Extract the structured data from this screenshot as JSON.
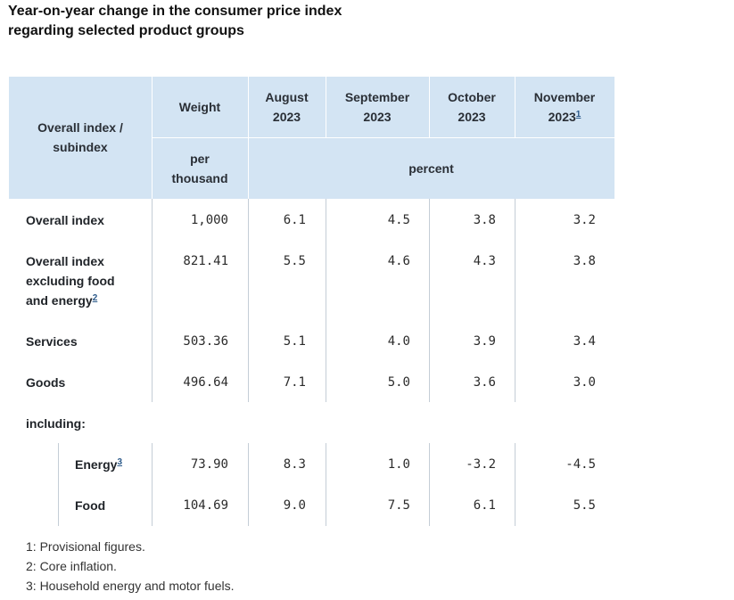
{
  "title": {
    "line1": "Year-on-year change in the consumer price index",
    "line2": "regarding selected product groups"
  },
  "header": {
    "subindex_label_1": "Overall index /",
    "subindex_label_2": "subindex",
    "weight_label": "Weight",
    "weight_unit_1": "per",
    "weight_unit_2": "thousand",
    "percent_label": "percent",
    "months": [
      {
        "month": "August",
        "year": "2023",
        "footnote": ""
      },
      {
        "month": "September",
        "year": "2023",
        "footnote": ""
      },
      {
        "month": "October",
        "year": "2023",
        "footnote": ""
      },
      {
        "month": "November",
        "year": "2023",
        "footnote": "1"
      }
    ]
  },
  "rows": [
    {
      "label_lines": [
        "Overall index"
      ],
      "weight": "1,000",
      "values": [
        "6.1",
        "4.5",
        "3.8",
        "3.2"
      ]
    },
    {
      "label_lines": [
        "Overall index",
        "excluding food",
        "and energy"
      ],
      "footnote": "2",
      "weight": "821.41",
      "values": [
        "5.5",
        "4.6",
        "4.3",
        "3.8"
      ]
    },
    {
      "label_lines": [
        "Services"
      ],
      "weight": "503.36",
      "values": [
        "5.1",
        "4.0",
        "3.9",
        "3.4"
      ]
    },
    {
      "label_lines": [
        "Goods"
      ],
      "weight": "496.64",
      "values": [
        "7.1",
        "5.0",
        "3.6",
        "3.0"
      ]
    },
    {
      "label_lines": [
        "including:"
      ]
    },
    {
      "label_lines": [
        "Energy"
      ],
      "footnote": "3",
      "weight": "73.90",
      "values": [
        "8.3",
        "1.0",
        "-3.2",
        "-4.5"
      ]
    },
    {
      "label_lines": [
        "Food"
      ],
      "weight": "104.69",
      "values": [
        "9.0",
        "7.5",
        "6.1",
        "5.5"
      ]
    }
  ],
  "footnotes": [
    "1: Provisional figures.",
    "2: Core inflation.",
    "3: Household energy and motor fuels."
  ]
}
